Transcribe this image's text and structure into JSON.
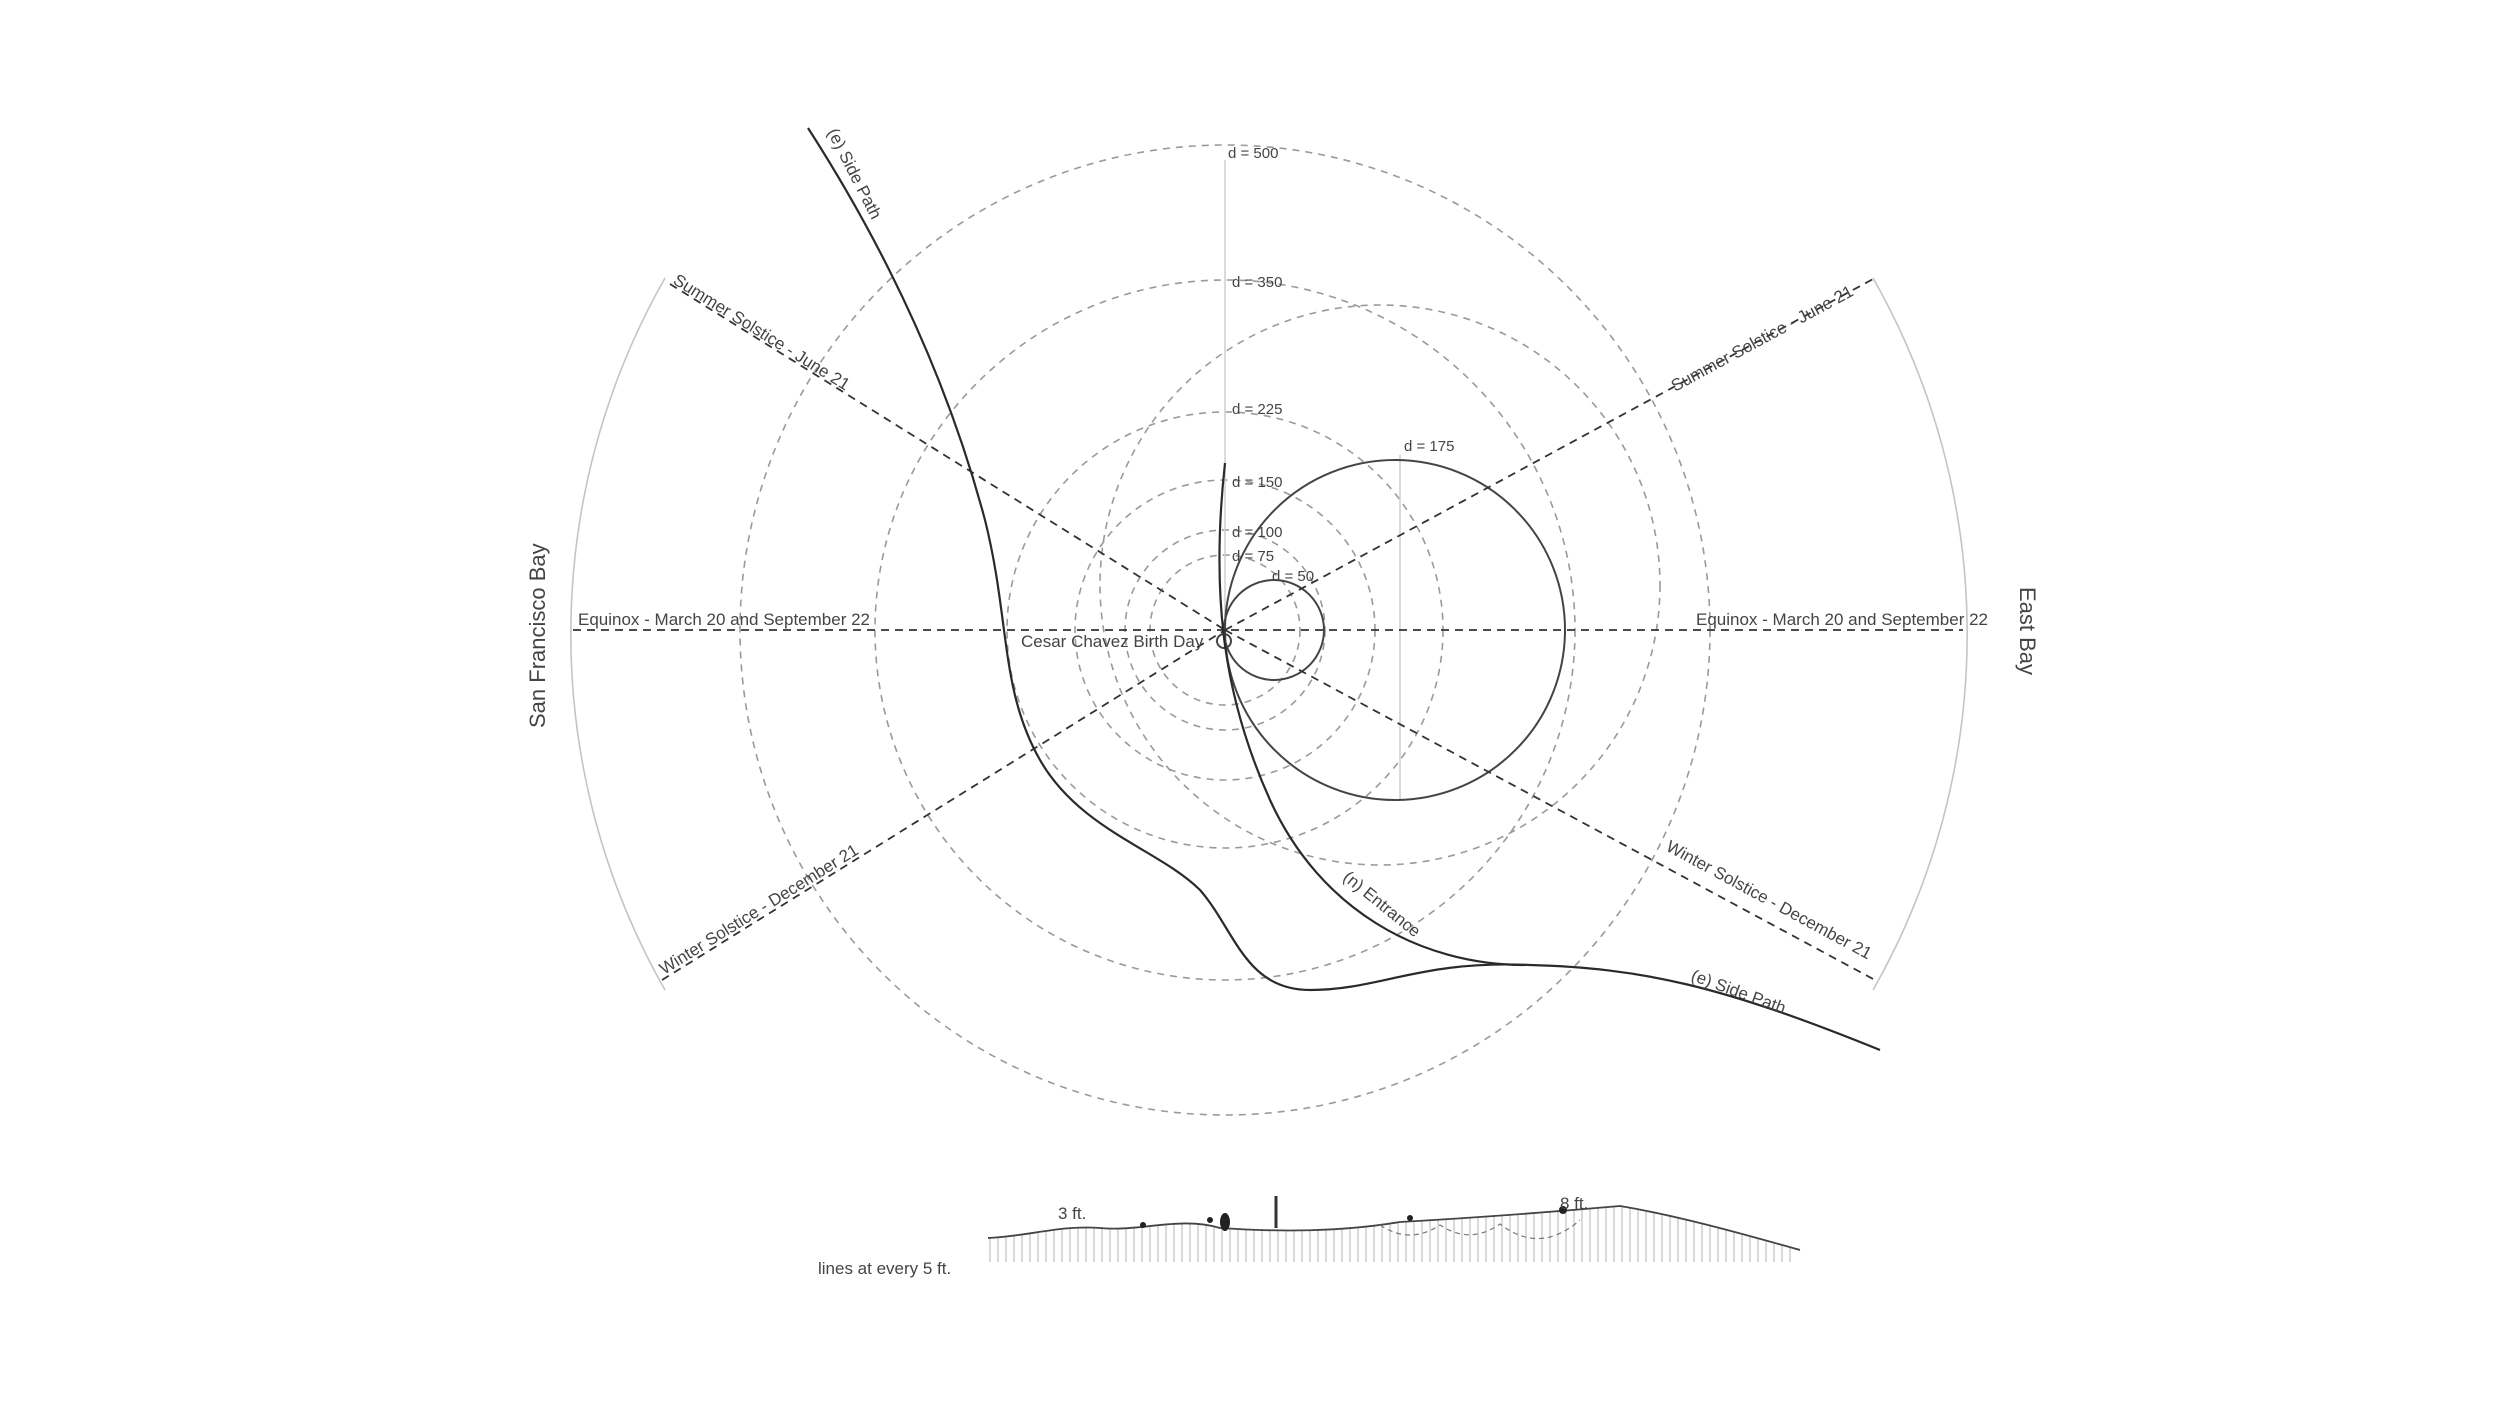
{
  "rings": [
    {
      "label": "d = 500"
    },
    {
      "label": "d = 350"
    },
    {
      "label": "d = 225"
    },
    {
      "label": "d = 150"
    },
    {
      "label": "d = 100"
    },
    {
      "label": "d = 75"
    },
    {
      "label": "d = 50"
    },
    {
      "label": "d = 175"
    }
  ],
  "sun_lines": {
    "summer_solstice": "Summer Solstice - June 21",
    "winter_solstice": "Winter Solstice - December 21",
    "equinox": "Equinox - March 20 and September 22"
  },
  "center_label": "Cesar Chavez Birth Day",
  "sides": {
    "west": "San Francisco Bay",
    "east": "East Bay"
  },
  "paths": {
    "side_path": "(e) Side Path",
    "entrance": "(n) Entrance"
  },
  "section": {
    "left_height": "3 ft.",
    "right_height": "8 ft.",
    "note": "lines at every 5 ft."
  }
}
